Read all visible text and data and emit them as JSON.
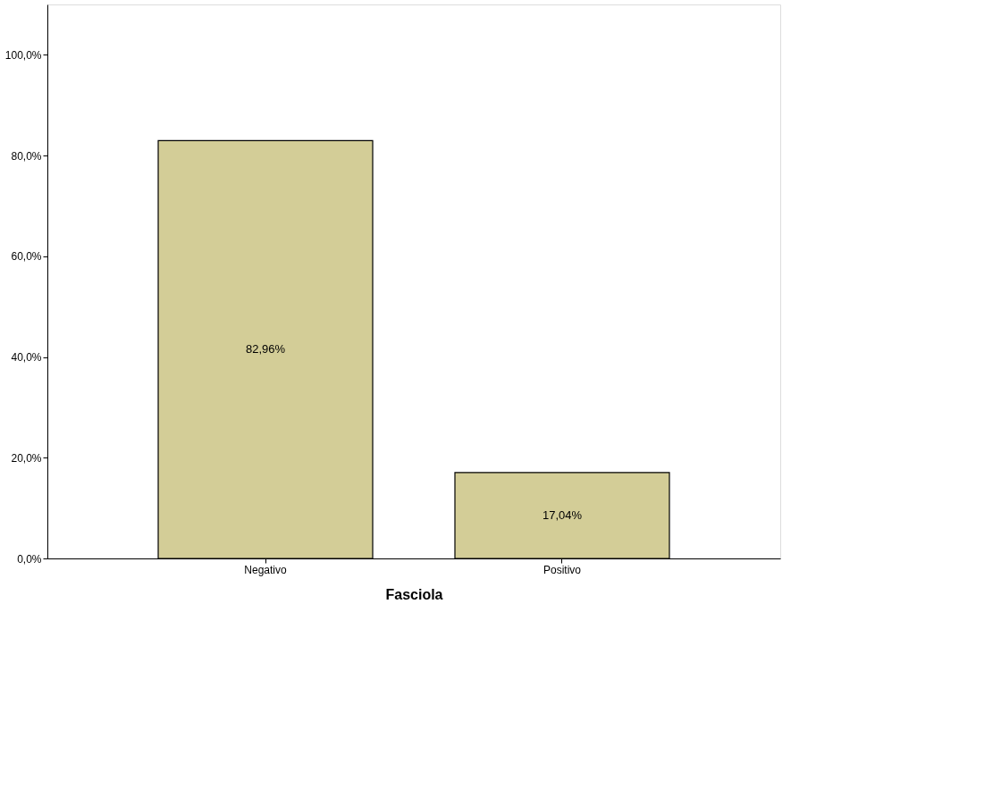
{
  "chart_data": {
    "type": "bar",
    "xlabel": "Fasciola",
    "categories": [
      "Negativo",
      "Positivo"
    ],
    "values": [
      82.96,
      17.04
    ],
    "value_labels": [
      "82,96%",
      "17,04%"
    ],
    "color": "#d3cd97",
    "ylim": [
      0,
      110
    ],
    "yticks": [
      {
        "value": 0,
        "label": "0,0%"
      },
      {
        "value": 20,
        "label": "20,0%"
      },
      {
        "value": 40,
        "label": "40,0%"
      },
      {
        "value": 60,
        "label": "60,0%"
      },
      {
        "value": 80,
        "label": "80,0%"
      },
      {
        "value": 100,
        "label": "100,0%"
      }
    ],
    "grid": false
  }
}
